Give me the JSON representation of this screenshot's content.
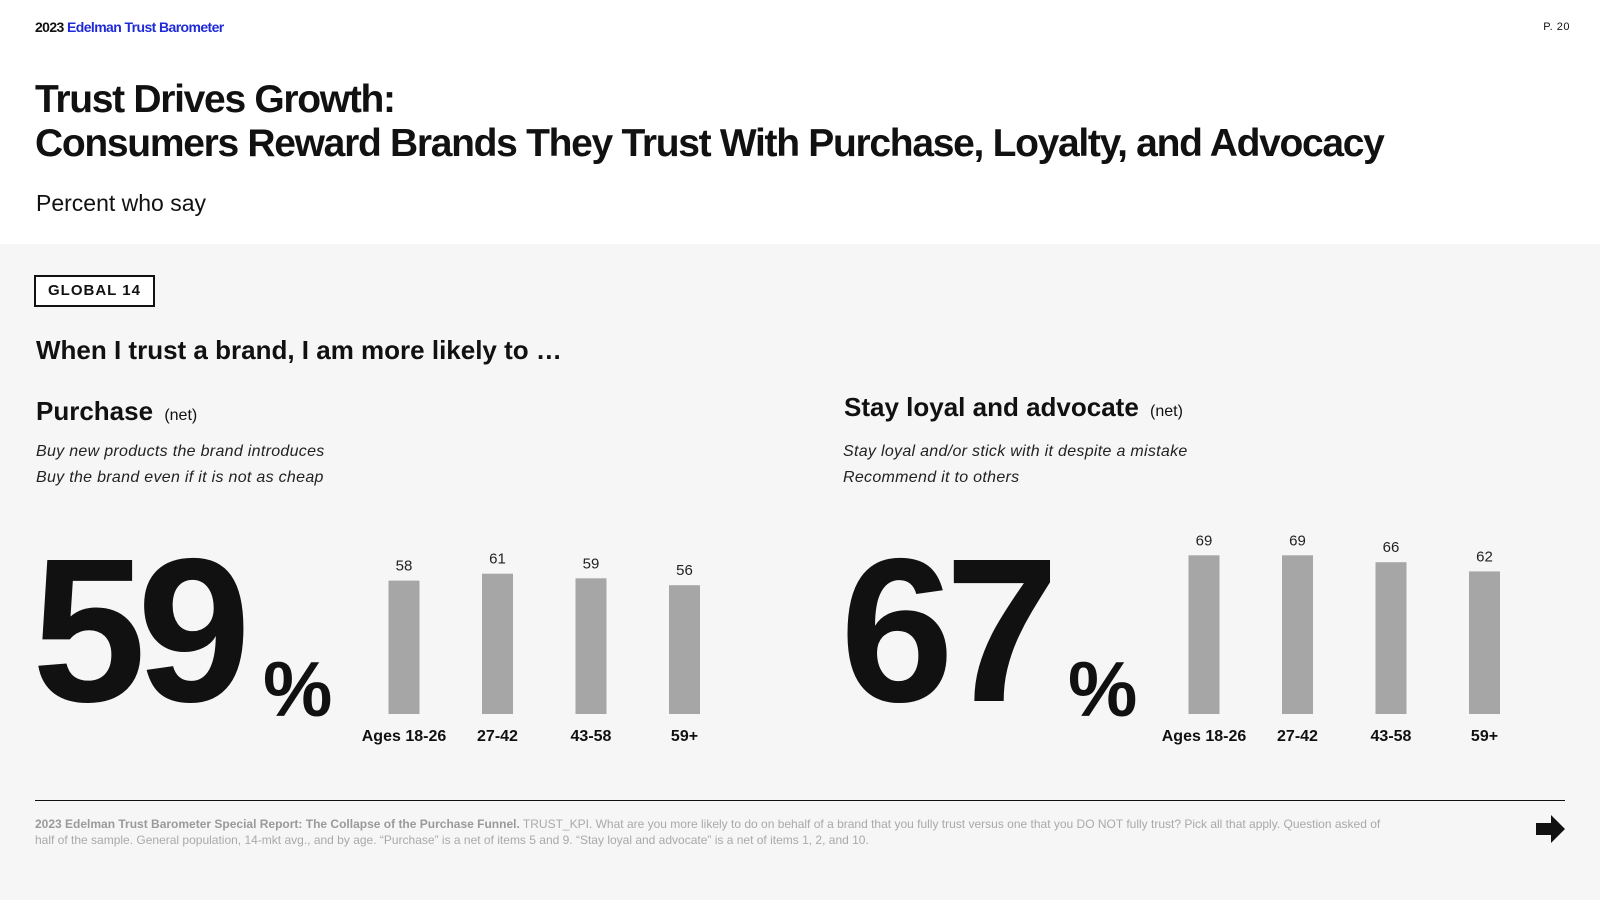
{
  "header": {
    "brand_year": "2023",
    "brand_name": "Edelman Trust Barometer",
    "page_number": "P. 20"
  },
  "title": {
    "line1": "Trust Drives Growth:",
    "line2": "Consumers Reward Brands They Trust With Purchase, Loyalty, and Advocacy"
  },
  "subtitle": "Percent who say",
  "badge": "GLOBAL 14",
  "question": "When I trust a brand, I am more likely to …",
  "sections": [
    {
      "title": "Purchase",
      "note": "(net)",
      "lines": [
        "Buy new products the brand introduces",
        "Buy the brand even if it is not as cheap"
      ],
      "big_value": "59",
      "percent_sign": "%"
    },
    {
      "title": "Stay loyal and advocate",
      "note": "(net)",
      "lines": [
        "Stay loyal and/or stick with it despite a mistake",
        "Recommend it to others"
      ],
      "big_value": "67",
      "percent_sign": "%"
    }
  ],
  "chart_data": [
    {
      "type": "bar",
      "categories": [
        "Ages 18-26",
        "27-42",
        "43-58",
        "59+"
      ],
      "values": [
        58,
        61,
        59,
        56
      ],
      "title": "",
      "xlabel": "",
      "ylabel": "",
      "ylim": [
        0,
        100
      ],
      "grid": false,
      "bar_color": "#a6a6a6"
    },
    {
      "type": "bar",
      "categories": [
        "Ages 18-26",
        "27-42",
        "43-58",
        "59+"
      ],
      "values": [
        69,
        69,
        66,
        62
      ],
      "title": "",
      "xlabel": "",
      "ylabel": "",
      "ylim": [
        0,
        100
      ],
      "grid": false,
      "bar_color": "#a6a6a6"
    }
  ],
  "footnote": {
    "bold": "2023 Edelman Trust Barometer Special Report: The Collapse of the Purchase Funnel.",
    "text": " TRUST_KPI. What are you more likely to do on behalf of a brand that you fully trust versus one that you DO NOT fully trust? Pick all that apply. Question asked of half of the sample. General population, 14-mkt avg., and by age. “Purchase” is a net of items 5 and 9. “Stay loyal and advocate” is a net of items 1, 2, and 10."
  },
  "icons": {
    "next": "arrow-right-icon"
  },
  "colors": {
    "brand_blue": "#1f2bd8",
    "bar": "#a6a6a6",
    "panel_bg": "#f6f6f6",
    "text": "#111111"
  }
}
